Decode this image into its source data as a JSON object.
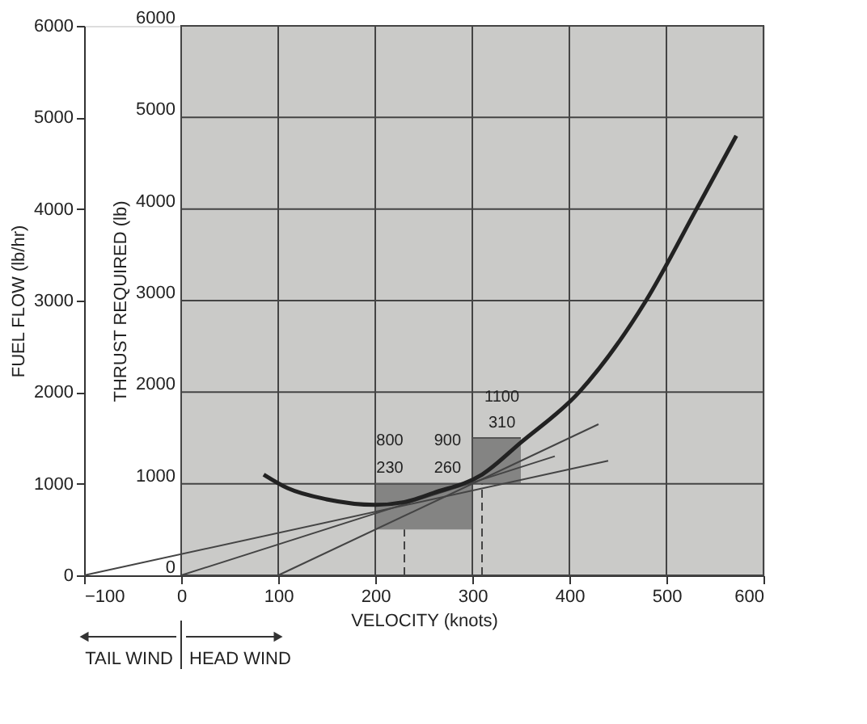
{
  "chart_data": {
    "type": "line",
    "xlabel": "VELOCITY (knots)",
    "ylabel": "THRUST REQUIRED (lb)",
    "y2label": "FUEL FLOW (lb/hr)",
    "xlim": [
      -100,
      600
    ],
    "xticks": [
      -100,
      0,
      100,
      200,
      300,
      400,
      500,
      600
    ],
    "ylim": [
      0,
      6000
    ],
    "yticks": [
      0,
      1000,
      2000,
      3000,
      4000,
      5000,
      6000
    ],
    "y2lim": [
      0,
      6000
    ],
    "y2ticks": [
      0,
      1000,
      2000,
      3000,
      4000,
      5000,
      6000
    ],
    "grid": true,
    "bands": [
      {
        "axis": "x",
        "from": 0,
        "to": 600,
        "color": "#cacac8"
      }
    ],
    "series": [
      {
        "color": "#555555",
        "x": [
          200,
          300
        ],
        "values": [
          1000,
          1000
        ],
        "lower": [
          500,
          500
        ],
        "upper": [
          1000,
          1000
        ]
      },
      {
        "color": "#555555",
        "x": [
          300,
          350
        ],
        "values": [
          1500,
          1500
        ],
        "lower": [
          1000,
          1000
        ],
        "upper": [
          1500,
          1500
        ]
      },
      {
        "color": "#444444",
        "line_style": "dashed",
        "x": [
          230,
          230
        ],
        "values": [
          0,
          500
        ]
      },
      {
        "color": "#444444",
        "line_style": "dashed",
        "x": [
          310,
          310
        ],
        "values": [
          0,
          1000
        ]
      },
      {
        "color": "#444444",
        "x": [
          -100,
          440
        ],
        "values": [
          0,
          1250
        ]
      },
      {
        "color": "#444444",
        "x": [
          0,
          385
        ],
        "values": [
          0,
          1300
        ]
      },
      {
        "color": "#444444",
        "x": [
          100,
          430
        ],
        "values": [
          0,
          1650
        ]
      },
      {
        "color": "#222222",
        "x": [
          85,
          110,
          150,
          200,
          230,
          260,
          310,
          350,
          410,
          479,
          531,
          572
        ],
        "values": [
          1100,
          950,
          830,
          770,
          800,
          900,
          1100,
          1450,
          2000,
          3000,
          4000,
          4800
        ]
      }
    ],
    "annotations": [
      "800",
      "230",
      "900",
      "260",
      "1100",
      "310",
      "TAIL WIND",
      "HEAD WIND"
    ]
  }
}
